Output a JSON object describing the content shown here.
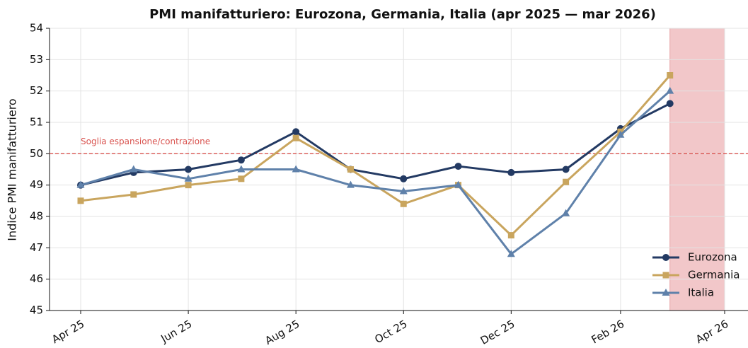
{
  "chart_data": {
    "type": "line",
    "title": "PMI manifatturiero: Eurozona, Germania, Italia (apr 2025 — mar 2026)",
    "ylabel": "Indice PMI manifatturiero",
    "x": [
      "2025-04",
      "2025-05",
      "2025-06",
      "2025-07",
      "2025-08",
      "2025-09",
      "2025-10",
      "2025-11",
      "2025-12",
      "2026-01",
      "2026-02",
      "2026-03"
    ],
    "series": [
      {
        "name": "Eurozona",
        "color": "#233a63",
        "marker": "circle",
        "values": [
          49.0,
          49.4,
          49.5,
          49.8,
          50.7,
          49.5,
          49.2,
          49.6,
          49.4,
          49.5,
          50.8,
          51.6
        ]
      },
      {
        "name": "Germania",
        "color": "#c9a55e",
        "marker": "square",
        "values": [
          48.5,
          48.7,
          49.0,
          49.2,
          50.5,
          49.5,
          48.4,
          49.0,
          47.4,
          49.1,
          50.7,
          52.5
        ]
      },
      {
        "name": "Italia",
        "color": "#5f81aa",
        "marker": "triangle",
        "values": [
          49.0,
          49.5,
          49.2,
          49.5,
          49.5,
          49.0,
          48.8,
          49.0,
          46.8,
          48.1,
          50.6,
          52.0
        ]
      }
    ],
    "ylim": [
      45,
      54
    ],
    "yticks": [
      45,
      46,
      47,
      48,
      49,
      50,
      51,
      52,
      53,
      54
    ],
    "xticks": [
      {
        "value": "2025-04",
        "label": "Apr 25"
      },
      {
        "value": "2025-06",
        "label": "Jun 25"
      },
      {
        "value": "2025-08",
        "label": "Aug 25"
      },
      {
        "value": "2025-10",
        "label": "Oct 25"
      },
      {
        "value": "2025-12",
        "label": "Dec 25"
      },
      {
        "value": "2026-02",
        "label": "Feb 26"
      },
      {
        "value": "2026-04",
        "label": "Apr 26"
      }
    ],
    "threshold": {
      "value": 50,
      "label": "Soglia espansione/contrazione",
      "color": "#d9534f"
    },
    "highlight_region": {
      "x": [
        "2026-03",
        "2026-04"
      ],
      "color": "#f2c7c9"
    },
    "grid": true,
    "legend": "lower right"
  }
}
